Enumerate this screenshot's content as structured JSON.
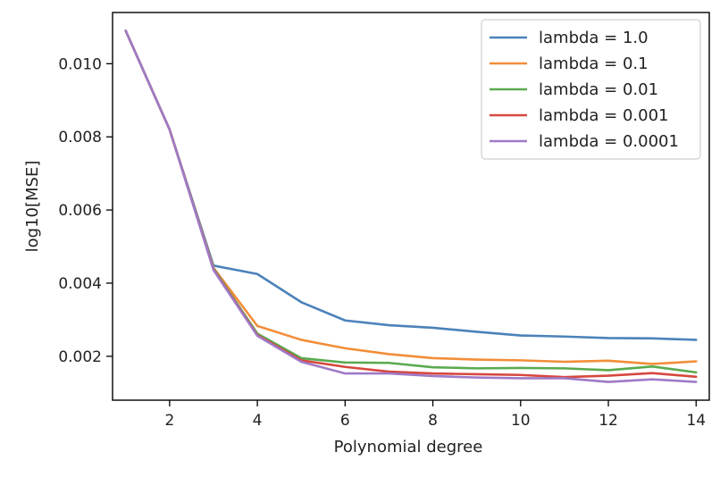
{
  "chart_data": {
    "type": "line",
    "title": "",
    "xlabel": "Polynomial degree",
    "ylabel": "log10[MSE]",
    "xlim": [
      0.7,
      14.3
    ],
    "ylim": [
      0.0008,
      0.0114
    ],
    "xticks": [
      2,
      4,
      6,
      8,
      10,
      12,
      14
    ],
    "xtick_labels": [
      "2",
      "4",
      "6",
      "8",
      "10",
      "12",
      "14"
    ],
    "yticks": [
      0.002,
      0.004,
      0.006,
      0.008,
      0.01
    ],
    "ytick_labels": [
      "0.002",
      "0.004",
      "0.006",
      "0.008",
      "0.010"
    ],
    "grid": false,
    "legend_position": "top-right",
    "x": [
      1,
      2,
      3,
      4,
      5,
      6,
      7,
      8,
      9,
      10,
      11,
      12,
      13,
      14
    ],
    "series": [
      {
        "name": "lambda = 1.0",
        "color": "#4c82ba",
        "values": [
          0.0109,
          0.0082,
          0.00448,
          0.00425,
          0.00348,
          0.00298,
          0.00285,
          0.00278,
          0.00267,
          0.00257,
          0.00254,
          0.0025,
          0.00249,
          0.00245
        ]
      },
      {
        "name": "lambda = 0.1",
        "color": "#f28e3a",
        "values": [
          0.0109,
          0.0082,
          0.00442,
          0.00283,
          0.00245,
          0.00222,
          0.00206,
          0.00195,
          0.00191,
          0.00189,
          0.00185,
          0.00188,
          0.00179,
          0.00186
        ]
      },
      {
        "name": "lambda = 0.01",
        "color": "#5aaa4f",
        "values": [
          0.0109,
          0.0082,
          0.0044,
          0.00262,
          0.00195,
          0.00183,
          0.00182,
          0.0017,
          0.00167,
          0.00168,
          0.00167,
          0.00162,
          0.00172,
          0.00156
        ]
      },
      {
        "name": "lambda = 0.001",
        "color": "#d6483f",
        "values": [
          0.0109,
          0.0082,
          0.00438,
          0.00258,
          0.00189,
          0.00171,
          0.00158,
          0.00153,
          0.00151,
          0.00149,
          0.00143,
          0.00147,
          0.00154,
          0.00144
        ]
      },
      {
        "name": "lambda = 0.0001",
        "color": "#9f7ac7",
        "values": [
          0.0109,
          0.0082,
          0.00436,
          0.00256,
          0.00185,
          0.00153,
          0.00153,
          0.00146,
          0.00142,
          0.0014,
          0.0014,
          0.0013,
          0.00137,
          0.0013
        ]
      }
    ]
  }
}
